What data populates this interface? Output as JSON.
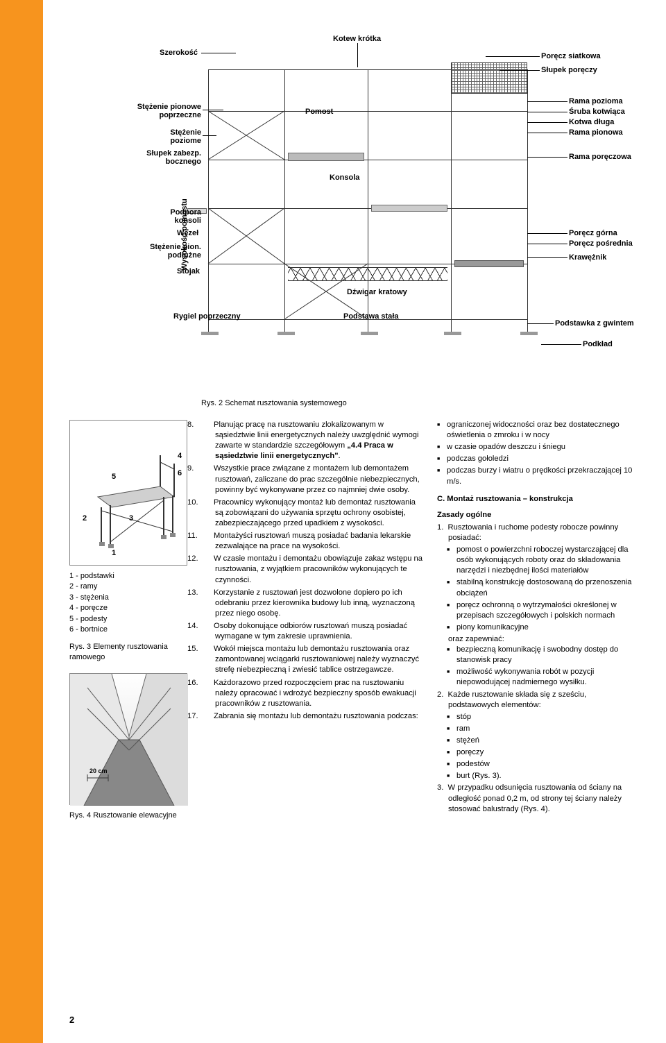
{
  "page_number": "2",
  "main_diagram": {
    "caption": "Rys. 2 Schemat rusztowania systemowego",
    "labels_left": [
      "Szerokość",
      "Stężenie pionowe poprzeczne",
      "Stężenie poziome",
      "Słupek zabezp. bocznego",
      "Podpora konsoli",
      "Węzeł",
      "Stężenie pion. podłużne",
      "Stojak",
      "Rygiel poprzeczny"
    ],
    "labels_top": [
      "Kotew krótka",
      "Pomost",
      "Konsola",
      "Dźwigar kratowy",
      "Podstawa stała"
    ],
    "labels_right": [
      "Poręcz siatkowa",
      "Słupek poręczy",
      "Rama pozioma",
      "Śruba kotwiąca",
      "Kotwa długa",
      "Rama pionowa",
      "Rama poręczowa",
      "Poręcz górna",
      "Poręcz pośrednia",
      "Krawężnik",
      "Podstawka z gwintem",
      "Podkład"
    ],
    "axis_label": "Wysokość pomostu"
  },
  "fig3": {
    "caption": "Rys. 3 Elementy rusztowania ramowego",
    "numbers": [
      "1",
      "2",
      "3",
      "4",
      "5",
      "6"
    ],
    "legend": [
      "1 - podstawki",
      "2 - ramy",
      "3 - stężenia",
      "4 - poręcze",
      "5 - podesty",
      "6 - bortnice"
    ]
  },
  "fig4": {
    "caption": "Rys. 4 Rusztowanie elewacyjne",
    "dim": "20 cm"
  },
  "middle_column": {
    "items": [
      {
        "n": "8.",
        "text": "Planując pracę na rusztowaniu zlokalizowanym w sąsiedztwie linii energetycznych należy uwzględnić wymogi zawarte w standardzie szczegółowym „4.4 Praca w sąsiedztwie linii energetycznych\"."
      },
      {
        "n": "9.",
        "text": "Wszystkie prace związane z montażem lub demontażem rusztowań, zaliczane do prac szczególnie niebezpiecznych, powinny być wykonywane przez co najmniej dwie osoby."
      },
      {
        "n": "10.",
        "text": "Pracownicy wykonujący montaż lub demontaż rusztowania są zobowiązani do używania sprzętu ochrony osobistej, zabezpieczającego przed upadkiem z wysokości."
      },
      {
        "n": "11.",
        "text": "Montażyści rusztowań muszą posiadać badania lekarskie zezwalające na prace na wysokości."
      },
      {
        "n": "12.",
        "text": "W czasie montażu i demontażu obowiązuje zakaz wstępu na rusztowania, z wyjątkiem pracowników wykonujących te czynności."
      },
      {
        "n": "13.",
        "text": "Korzystanie z rusztowań jest dozwolone dopiero po ich odebraniu przez kierownika budowy lub inną, wyznaczoną przez niego osobę."
      },
      {
        "n": "14.",
        "text": "Osoby dokonujące odbiorów rusztowań muszą posiadać wymagane w tym zakresie uprawnienia."
      },
      {
        "n": "15.",
        "text": "Wokół miejsca montażu lub demontażu rusztowania oraz zamontowanej wciągarki rusztowaniowej należy wyznaczyć strefę niebezpieczną i zwiesić tablice ostrzegawcze."
      },
      {
        "n": "16.",
        "text": "Każdorazowo przed rozpoczęciem prac na rusztowaniu należy opracować i wdrożyć bezpieczny sposób ewakuacji pracowników z rusztowania."
      },
      {
        "n": "17.",
        "text": "Zabrania się montażu lub demontażu rusztowania podczas:"
      }
    ]
  },
  "right_column": {
    "bullets17": [
      "ograniczonej widoczności oraz bez dostatecznego oświetlenia o zmroku i w nocy",
      "w czasie opadów deszczu i śniegu",
      "podczas gołoledzi",
      "podczas burzy i wiatru o prędkości przekraczającej 10 m/s."
    ],
    "section_c": "C.  Montaż rusztowania – konstrukcja",
    "zasady_head": "Zasady ogólne",
    "item1_lead": "Rusztowania i ruchome podesty robocze powinny posiadać:",
    "item1_sub": [
      "pomost o powierzchni roboczej wystarczającej dla osób wykonujących roboty oraz do składowania narzędzi i niezbędnej ilości materiałów",
      "stabilną konstrukcję dostosowaną do przenoszenia obciążeń",
      "poręcz ochronną o wytrzymałości określonej w przepisach szczegółowych i polskich normach",
      "piony komunikacyjne"
    ],
    "item1_lead2": "oraz zapewniać:",
    "item1_sub2": [
      "bezpieczną komunikację i swobodny dostęp do stanowisk pracy",
      "możliwość wykonywania robót w pozycji niepowodującej nadmiernego wysiłku."
    ],
    "item2_lead": "Każde rusztowanie składa się z sześciu, podstawowych elementów:",
    "item2_sub": [
      "stóp",
      "ram",
      "stężeń",
      "poręczy",
      "podestów",
      "burt (Rys. 3)."
    ],
    "item3": "W przypadku odsunięcia rusztowania od ściany na odległość ponad 0,2 m, od strony tej ściany należy stosować balustrady (Rys. 4)."
  }
}
